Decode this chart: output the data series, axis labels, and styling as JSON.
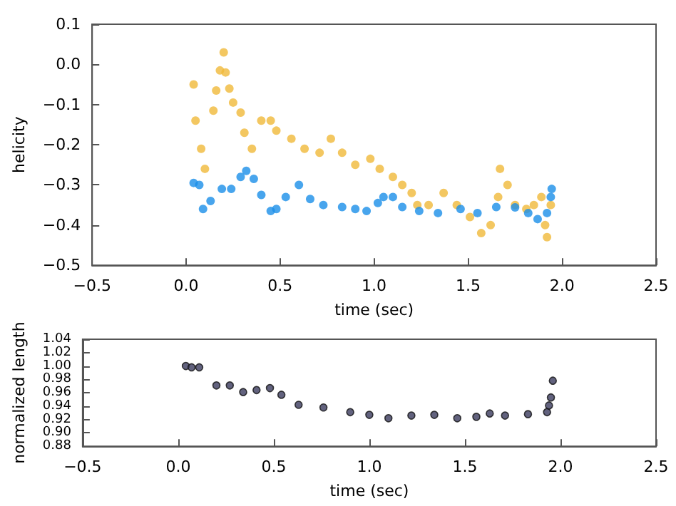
{
  "chart_data": [
    {
      "type": "scatter",
      "xlabel": "time (sec)",
      "ylabel": "helicity",
      "marker": "circle",
      "xlim": [
        -0.5,
        2.5
      ],
      "xticks": [
        {
          "value": -0.5,
          "label": "−0.5"
        },
        {
          "value": 0,
          "label": "0.0"
        },
        {
          "value": 0.5,
          "label": "0.5"
        },
        {
          "value": 1,
          "label": "1.0"
        },
        {
          "value": 1.5,
          "label": "1.5"
        },
        {
          "value": 2,
          "label": "2.0"
        },
        {
          "value": 2.5,
          "label": "2.5"
        }
      ],
      "ylim": [
        -0.5,
        0.1
      ],
      "yticks": [
        {
          "value": -0.5,
          "label": "−0.5"
        },
        {
          "value": -0.4,
          "label": "−0.4"
        },
        {
          "value": -0.3,
          "label": "−0.3"
        },
        {
          "value": -0.2,
          "label": "−0.2"
        },
        {
          "value": -0.1,
          "label": "−0.1"
        },
        {
          "value": 0,
          "label": "0.0"
        },
        {
          "value": 0.1,
          "label": "0.1"
        }
      ],
      "series": [
        {
          "color": "#f0b93a",
          "x": [
            0.04,
            0.05,
            0.08,
            0.1,
            0.145,
            0.16,
            0.18,
            0.2,
            0.21,
            0.23,
            0.25,
            0.29,
            0.31,
            0.35,
            0.4,
            0.45,
            0.48,
            0.56,
            0.63,
            0.71,
            0.77,
            0.83,
            0.9,
            0.98,
            1.03,
            1.1,
            1.15,
            1.2,
            1.23,
            1.29,
            1.37,
            1.44,
            1.51,
            1.57,
            1.62,
            1.66,
            1.67,
            1.71,
            1.75,
            1.81,
            1.85,
            1.89,
            1.91,
            1.92,
            1.94
          ],
          "values": [
            -0.05,
            -0.14,
            -0.21,
            -0.26,
            -0.115,
            -0.065,
            -0.015,
            0.03,
            -0.02,
            -0.06,
            -0.095,
            -0.12,
            -0.17,
            -0.21,
            -0.14,
            -0.14,
            -0.165,
            -0.185,
            -0.21,
            -0.22,
            -0.185,
            -0.22,
            -0.25,
            -0.235,
            -0.26,
            -0.28,
            -0.3,
            -0.32,
            -0.35,
            -0.35,
            -0.32,
            -0.35,
            -0.38,
            -0.42,
            -0.4,
            -0.33,
            -0.26,
            -0.3,
            -0.35,
            -0.36,
            -0.35,
            -0.33,
            -0.4,
            -0.43,
            -0.35
          ]
        },
        {
          "color": "#1a8fe8",
          "x": [
            0.04,
            0.07,
            0.09,
            0.13,
            0.19,
            0.24,
            0.29,
            0.32,
            0.36,
            0.4,
            0.45,
            0.48,
            0.53,
            0.6,
            0.66,
            0.73,
            0.83,
            0.9,
            0.96,
            1.02,
            1.05,
            1.1,
            1.15,
            1.24,
            1.34,
            1.46,
            1.55,
            1.65,
            1.75,
            1.82,
            1.87,
            1.92,
            1.94,
            1.945
          ],
          "values": [
            -0.295,
            -0.3,
            -0.36,
            -0.34,
            -0.31,
            -0.31,
            -0.28,
            -0.265,
            -0.285,
            -0.325,
            -0.365,
            -0.36,
            -0.33,
            -0.3,
            -0.335,
            -0.35,
            -0.355,
            -0.36,
            -0.365,
            -0.345,
            -0.33,
            -0.33,
            -0.355,
            -0.365,
            -0.37,
            -0.36,
            -0.37,
            -0.355,
            -0.356,
            -0.37,
            -0.385,
            -0.37,
            -0.33,
            -0.31
          ]
        }
      ]
    },
    {
      "type": "scatter",
      "xlabel": "time (sec)",
      "ylabel": "normalized length",
      "marker": "circle",
      "xlim": [
        -0.5,
        2.5
      ],
      "xticks": [
        {
          "value": -0.5,
          "label": "−0.5"
        },
        {
          "value": 0,
          "label": "0.0"
        },
        {
          "value": 0.5,
          "label": "0.5"
        },
        {
          "value": 1,
          "label": "1.0"
        },
        {
          "value": 1.5,
          "label": "1.5"
        },
        {
          "value": 2,
          "label": "2.0"
        },
        {
          "value": 2.5,
          "label": "2.5"
        }
      ],
      "ylim": [
        0.88,
        1.04
      ],
      "yticks": [
        {
          "value": 0.88,
          "label": "0.88"
        },
        {
          "value": 0.9,
          "label": "0.90"
        },
        {
          "value": 0.92,
          "label": "0.92"
        },
        {
          "value": 0.94,
          "label": "0.94"
        },
        {
          "value": 0.96,
          "label": "0.96"
        },
        {
          "value": 0.98,
          "label": "0.98"
        },
        {
          "value": 1,
          "label": "1.00"
        },
        {
          "value": 1.02,
          "label": "1.02"
        },
        {
          "value": 1.04,
          "label": "1.04"
        }
      ],
      "series": [
        {
          "color": "#3b3b5e",
          "x": [
            0.04,
            0.07,
            0.11,
            0.2,
            0.27,
            0.34,
            0.41,
            0.48,
            0.54,
            0.63,
            0.76,
            0.9,
            1.0,
            1.1,
            1.22,
            1.34,
            1.46,
            1.56,
            1.63,
            1.71,
            1.83,
            1.93,
            1.94,
            1.95,
            1.96
          ],
          "values": [
            1.0,
            0.998,
            0.998,
            0.971,
            0.971,
            0.961,
            0.964,
            0.967,
            0.957,
            0.942,
            0.938,
            0.931,
            0.927,
            0.922,
            0.926,
            0.927,
            0.922,
            0.924,
            0.929,
            0.926,
            0.928,
            0.931,
            0.941,
            0.953,
            0.978
          ]
        }
      ]
    }
  ]
}
